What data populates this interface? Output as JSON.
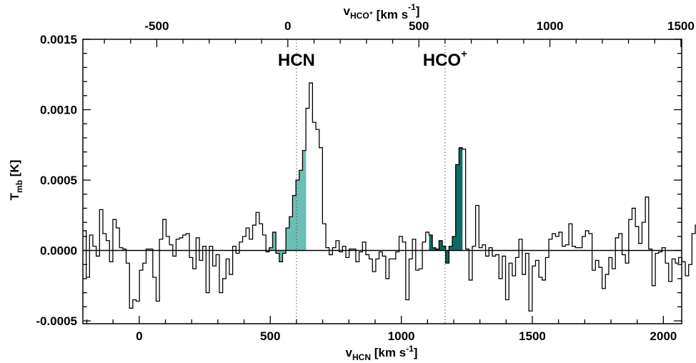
{
  "chart_data": {
    "type": "line",
    "style": "histogram-step",
    "ylabel_main": "T",
    "ylabel_sub": "mb",
    "ylabel_unit": " [K]",
    "xlabel_main": "v",
    "xlabel_sub": "HCN",
    "xlabel_unit": " [km s",
    "xlabel_exp": "-1",
    "xlabel_close": "]",
    "top_xlabel_main": "v",
    "top_xlabel_sub": "HCO",
    "top_xlabel_subsup": "+",
    "top_xlabel_unit": " [km s",
    "top_xlabel_exp": "-1",
    "top_xlabel_close": "]",
    "xlim": [
      -215,
      2070
    ],
    "ylim": [
      -0.00052,
      0.0015
    ],
    "top_axis_offset": 567,
    "x_ticks": [
      "0",
      "500",
      "1000",
      "1500",
      "2000"
    ],
    "x_tick_values": [
      0,
      500,
      1000,
      1500,
      2000
    ],
    "top_x_ticks": [
      "-500",
      "0",
      "500",
      "1000",
      "1500"
    ],
    "top_x_tick_values": [
      -500,
      0,
      500,
      1000,
      1500
    ],
    "y_ticks": [
      "-0.0005",
      "0.0000",
      "0.0005",
      "0.0010",
      "0.0015"
    ],
    "y_tick_values": [
      -0.0005,
      0,
      0.0005,
      0.001,
      0.0015
    ],
    "grid": false,
    "line_markers": [
      {
        "label": "HCN",
        "superscript": "",
        "x": 600
      },
      {
        "label": "HCO",
        "superscript": "+",
        "x": 1167
      }
    ],
    "fill_regions": [
      {
        "name": "HCN",
        "x_range": [
          485,
          640
        ],
        "color": "#6bbfb4"
      },
      {
        "name": "HCO+",
        "x_range": [
          1110,
          1230
        ],
        "color": "#0f6b63"
      }
    ],
    "bin_width": 12.7,
    "x_start": -215,
    "y": [
      0.00014,
      -0.00019,
      0.00011,
      3e-05,
      -4e-05,
      0.00029,
      0.00012,
      7e-05,
      -8e-05,
      0.00022,
      0.00016,
      2e-05,
      1e-05,
      -9e-05,
      -0.00041,
      -0.00035,
      -0.00036,
      -0.00014,
      -9e-05,
      1e-05,
      1e-05,
      -0.00019,
      -0.00036,
      8e-05,
      0.00022,
      0.0001,
      4e-05,
      -4e-05,
      8e-05,
      9e-05,
      0.00011,
      0.00012,
      -5e-05,
      -0.00013,
      9e-05,
      -7e-05,
      3e-05,
      -0.0003,
      3e-05,
      -0.00011,
      -3e-05,
      -0.0003,
      -0.0002,
      -6e-05,
      -0.00017,
      3e-05,
      -2e-05,
      6e-05,
      0.0001,
      0.00016,
      8e-05,
      0.00018,
      0.00027,
      0.00019,
      0.00011,
      -1e-05,
      2e-05,
      0.00013,
      -2e-05,
      -8e-05,
      -2e-05,
      0.00016,
      0.00024,
      0.00039,
      0.0005,
      0.00057,
      0.00071,
      0.00101,
      0.00119,
      0.00091,
      0.00086,
      0.00073,
      0.00019,
      2e-05,
      -3e-05,
      2e-05,
      7e-05,
      -1e-05,
      3e-05,
      -5e-05,
      1e-05,
      1e-05,
      -8e-05,
      -1e-05,
      6e-05,
      -3e-05,
      -6e-05,
      -0.00015,
      -6e-05,
      -1e-05,
      -4e-05,
      -0.0002,
      -6e-05,
      -6e-05,
      -1e-05,
      0.0001,
      6e-05,
      -0.00035,
      -6e-05,
      8e-05,
      -0.00014,
      -0.00013,
      6e-05,
      0.00013,
      0.00011,
      2e-05,
      1e-05,
      7e-05,
      3e-05,
      -9e-05,
      3e-05,
      0.0001,
      0.00061,
      0.00073,
      0.00072,
      1e-05,
      -0.00021,
      3e-05,
      0.00032,
      2e-05,
      4e-05,
      -4e-05,
      2e-05,
      -4e-05,
      -3e-05,
      -0.0002,
      -4e-05,
      -0.00035,
      -9e-05,
      -0.00018,
      -5e-05,
      8e-05,
      -0.00017,
      -2e-05,
      -0.00043,
      -0.00011,
      -7e-05,
      -0.00019,
      -0.00021,
      -5e-05,
      8e-05,
      0.00012,
      0.0001,
      0.00013,
      3e-05,
      4e-05,
      0.00019,
      3e-05,
      2e-05,
      2e-05,
      0.0001,
      0.00014,
      0.00012,
      -0.00014,
      -7e-05,
      -0.00012,
      -0.00027,
      -0.00017,
      -5e-05,
      -0.00013,
      9e-05,
      0.00012,
      -3e-05,
      -9e-05,
      0.00022,
      0.0003,
      0.00017,
      5e-05,
      0.0002,
      0.00038,
      1e-05,
      -0.00025,
      -2e-05,
      -1e-05,
      2e-05,
      -9e-05,
      -0.00022,
      -6e-05,
      -9e-05,
      -5e-05,
      -8e-05,
      -0.00018,
      -0.0001,
      0.00012,
      0.00018,
      0.00024,
      0.0005,
      0.00044,
      0.00045,
      0.00013,
      -0.00014,
      -0.00015,
      4e-05,
      -5e-05
    ]
  }
}
